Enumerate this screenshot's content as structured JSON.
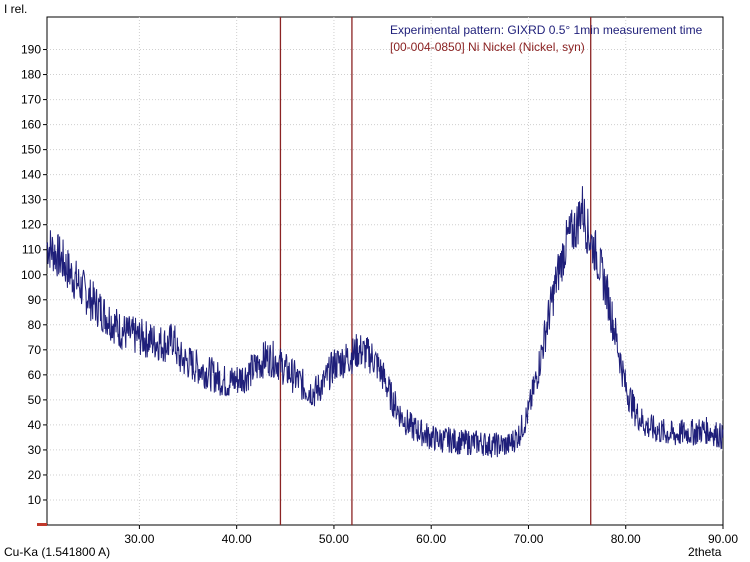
{
  "chart_data": {
    "type": "line",
    "ylabel": "I rel.",
    "xlabel": "2theta",
    "radiation_label": "Cu-Ka (1.541800 A)",
    "xlim": [
      20.5,
      90.0
    ],
    "ylim": [
      0,
      203
    ],
    "grid": true,
    "legend_position": "top-right",
    "x_ticks": [
      30.0,
      40.0,
      50.0,
      60.0,
      70.0,
      80.0,
      90.0
    ],
    "x_tick_labels": [
      "30.00",
      "40.00",
      "50.00",
      "60.00",
      "70.00",
      "80.00",
      "90.00"
    ],
    "y_ticks": [
      10,
      20,
      30,
      40,
      50,
      60,
      70,
      80,
      90,
      100,
      110,
      120,
      130,
      140,
      150,
      160,
      170,
      180,
      190
    ],
    "y_tick_labels": [
      "10",
      "20",
      "30",
      "40",
      "50",
      "60",
      "70",
      "80",
      "90",
      "100",
      "110",
      "120",
      "130",
      "140",
      "150",
      "160",
      "170",
      "180",
      "190"
    ],
    "series": [
      {
        "name": "Experimental pattern: GIXRD 0.5° 1min measurement time",
        "color": "#1f1f7a",
        "x": [
          20.5,
          21,
          22,
          23,
          24,
          25,
          26,
          27,
          28,
          29,
          30,
          31,
          32,
          33,
          33.5,
          34,
          35,
          36,
          37,
          38,
          39,
          40,
          41,
          42,
          43,
          44,
          44.5,
          45,
          46,
          47,
          48,
          49,
          50,
          51,
          52,
          52.5,
          53,
          54,
          55,
          56,
          57,
          58,
          59,
          60,
          61,
          62,
          63,
          64,
          65,
          66,
          67,
          68,
          69,
          70,
          71,
          72,
          73,
          74,
          75,
          75.5,
          76,
          77,
          78,
          79,
          80,
          81,
          82,
          83,
          84,
          85,
          86,
          87,
          88,
          89,
          90
        ],
        "y": [
          112,
          110,
          106,
          100,
          95,
          90,
          86,
          82,
          78,
          76,
          75,
          74,
          73,
          72,
          75,
          67,
          65,
          63,
          61,
          59,
          57,
          58,
          60,
          63,
          67,
          66,
          64,
          62,
          59,
          55,
          53,
          57,
          64,
          66,
          68,
          70,
          69,
          67,
          60,
          50,
          43,
          39,
          37,
          35,
          34,
          34,
          33,
          33,
          33,
          32,
          32,
          32,
          36,
          45,
          62,
          82,
          100,
          114,
          120,
          128,
          118,
          108,
          94,
          75,
          55,
          45,
          40,
          38,
          37,
          36,
          37,
          37,
          38,
          37,
          35
        ]
      },
      {
        "name": "[00-004-0850] Ni Nickel (Nickel, syn)",
        "color": "#8b2323",
        "type": "sticks",
        "x": [
          44.5,
          51.85,
          76.4
        ]
      }
    ]
  }
}
